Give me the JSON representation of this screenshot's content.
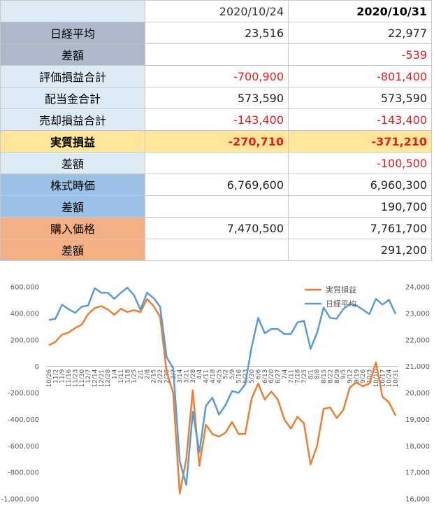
{
  "table": {
    "header": [
      "2020/10/24",
      "2020/10/31"
    ],
    "rows": [
      {
        "label": "日経平均",
        "values": [
          "23,516",
          "22,977"
        ],
        "color": "#adb9ca"
      },
      {
        "label": "差額",
        "values": [
          null,
          "-539"
        ],
        "color": "#adb9ca"
      },
      {
        "label": "評価損益合計",
        "values": [
          "-700,900",
          "-801,400"
        ],
        "color": "#ddebf7"
      },
      {
        "label": "配当金合計",
        "values": [
          "573,590",
          "573,590"
        ],
        "color": "#ddebf7"
      },
      {
        "label": "売却損益合計",
        "values": [
          "-143,400",
          "-143,400"
        ],
        "color": "#ddebf7"
      },
      {
        "label": "実質損益",
        "values": [
          "-270,710",
          "-371,210"
        ],
        "color": "#ffe699",
        "bold": true
      },
      {
        "label": "差額",
        "values": [
          null,
          "-100,500"
        ],
        "color": "#ddebf7"
      },
      {
        "label": "株式時価",
        "values": [
          "6,769,600",
          "6,960,300"
        ],
        "color": "#9bc2e6"
      },
      {
        "label": "差額",
        "values": [
          null,
          "190,700"
        ],
        "color": "#9bc2e6"
      },
      {
        "label": "購入価格",
        "values": [
          "7,470,500",
          "7,761,700"
        ],
        "color": "#f4b084"
      },
      {
        "label": "差額",
        "values": [
          null,
          "291,200"
        ],
        "color": "#f4b084"
      }
    ],
    "header_color": "#ddebf7"
  },
  "chart_data": {
    "type": "line",
    "categories": [
      "10/26",
      "11/2",
      "11/9",
      "11/16",
      "11/23",
      "11/30",
      "12/7",
      "12/14",
      "12/21",
      "12/28",
      "1/4",
      "1/11",
      "1/18",
      "1/25",
      "2/1",
      "2/8",
      "2/15",
      "2/22",
      "2/29",
      "3/7",
      "3/14",
      "3/21",
      "3/28",
      "4/4",
      "4/11",
      "4/18",
      "4/25",
      "5/2",
      "5/9",
      "5/16",
      "5/23",
      "5/30",
      "6/6",
      "6/13",
      "6/20",
      "6/27",
      "7/4",
      "7/11",
      "7/18",
      "7/25",
      "8/1",
      "8/8",
      "8/15",
      "8/22",
      "8/29",
      "9/5",
      "9/12",
      "9/19",
      "9/26",
      "10/3",
      "10/10",
      "10/17",
      "10/24",
      "10/31"
    ],
    "series": [
      {
        "name": "実質損益",
        "color": "#ed7d31",
        "axis": "y",
        "values": [
          160000,
          185000,
          240000,
          255000,
          290000,
          315000,
          395000,
          440000,
          455000,
          430000,
          390000,
          435000,
          410000,
          425000,
          410000,
          510000,
          455000,
          375000,
          -40000,
          -200000,
          -960000,
          -700000,
          -180000,
          -750000,
          -440000,
          -510000,
          -530000,
          -500000,
          -420000,
          -510000,
          -510000,
          -240000,
          -130000,
          -250000,
          -190000,
          -250000,
          -400000,
          -470000,
          -380000,
          -430000,
          -740000,
          -600000,
          -320000,
          -310000,
          -390000,
          -330000,
          -160000,
          -120000,
          -150000,
          -130000,
          30000,
          -230000,
          -270710,
          -371210
        ]
      },
      {
        "name": "日経平均",
        "color": "#5b9bd5",
        "axis": "y2",
        "values": [
          22750,
          22800,
          23330,
          23160,
          23020,
          23250,
          23300,
          23950,
          23780,
          23780,
          23550,
          23780,
          23970,
          23690,
          23140,
          23780,
          23580,
          23250,
          21350,
          20930,
          17420,
          16530,
          19290,
          17760,
          19510,
          19820,
          19180,
          19540,
          20070,
          20000,
          20320,
          21740,
          22830,
          22250,
          22410,
          22410,
          22220,
          22220,
          22660,
          22720,
          21660,
          22270,
          23220,
          22830,
          22800,
          23160,
          23360,
          23300,
          23140,
          22970,
          23550,
          23330,
          23516,
          22977
        ]
      }
    ],
    "ylim": [
      -1000000,
      600000
    ],
    "yticks": [
      {
        "value": -1000000,
        "label": "-1,000,000"
      },
      {
        "value": -800000,
        "label": "-800,000"
      },
      {
        "value": -600000,
        "label": "-600,000"
      },
      {
        "value": -400000,
        "label": "-400,000"
      },
      {
        "value": -200000,
        "label": "-200,000"
      },
      0,
      {
        "value": 200000,
        "label": "200,000"
      },
      {
        "value": 400000,
        "label": "400,000"
      },
      {
        "value": 600000,
        "label": "600,000"
      }
    ],
    "y2lim": [
      16000,
      24000
    ],
    "y2ticks": [
      {
        "value": 16000,
        "label": "16,000"
      },
      {
        "value": 17000,
        "label": "17,000"
      },
      {
        "value": 18000,
        "label": "18,000"
      },
      {
        "value": 19000,
        "label": "19,000"
      },
      {
        "value": 20000,
        "label": "20,000"
      },
      {
        "value": 21000,
        "label": "21,000"
      },
      {
        "value": 22000,
        "label": "22,000"
      },
      {
        "value": 23000,
        "label": "23,000"
      },
      {
        "value": 24000,
        "label": "24,000"
      }
    ],
    "grid": false,
    "legend": "top-right"
  }
}
